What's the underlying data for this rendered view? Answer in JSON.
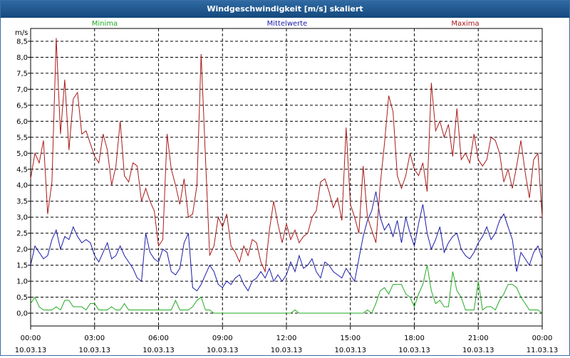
{
  "window": {
    "title": "Windgeschwindigkeit [m/s] skaliert"
  },
  "chart_data": {
    "type": "line",
    "title": "Windgeschwindigkeit [m/s] skaliert",
    "ylabel": "m/s",
    "ylim": [
      -0.4,
      8.9
    ],
    "xlim": [
      0,
      24
    ],
    "grid": true,
    "y_ticks": [
      "0,0",
      "0,5",
      "1,0",
      "1,5",
      "2,0",
      "2,5",
      "3,0",
      "3,5",
      "4,0",
      "4,5",
      "5,0",
      "5,5",
      "6,0",
      "6,5",
      "7,0",
      "7,5",
      "8,0",
      "8,5"
    ],
    "x_ticks": [
      {
        "time": "00:00",
        "date": "10.03.13"
      },
      {
        "time": "03:00",
        "date": "10.03.13"
      },
      {
        "time": "06:00",
        "date": "10.03.13"
      },
      {
        "time": "09:00",
        "date": "10.03.13"
      },
      {
        "time": "12:00",
        "date": "10.03.13"
      },
      {
        "time": "15:00",
        "date": "10.03.13"
      },
      {
        "time": "18:00",
        "date": "10.03.13"
      },
      {
        "time": "21:00",
        "date": "10.03.13"
      },
      {
        "time": "00:00",
        "date": "11.03.13"
      }
    ],
    "series": [
      {
        "name": "Minima",
        "color": "#22aa22",
        "x": [
          0,
          0.2,
          0.4,
          0.6,
          0.8,
          1.0,
          1.2,
          1.4,
          1.6,
          1.8,
          2.0,
          2.2,
          2.4,
          2.6,
          2.8,
          3.0,
          3.2,
          3.4,
          3.6,
          3.8,
          4.0,
          4.2,
          4.4,
          4.6,
          4.8,
          5.0,
          5.2,
          5.4,
          5.6,
          5.8,
          6.0,
          6.2,
          6.4,
          6.6,
          6.8,
          7.0,
          7.2,
          7.4,
          7.6,
          7.8,
          8.0,
          8.2,
          8.4,
          8.6,
          8.8,
          9.0,
          9.2,
          9.4,
          9.6,
          9.8,
          10.0,
          10.2,
          10.4,
          10.6,
          10.8,
          11.0,
          11.2,
          11.4,
          11.6,
          11.8,
          12.0,
          12.2,
          12.4,
          12.6,
          12.8,
          13.0,
          13.2,
          13.4,
          13.6,
          13.8,
          14.0,
          14.2,
          14.4,
          14.6,
          14.8,
          15.0,
          15.2,
          15.4,
          15.6,
          15.8,
          16.0,
          16.2,
          16.4,
          16.6,
          16.8,
          17.0,
          17.2,
          17.4,
          17.6,
          17.8,
          18.0,
          18.2,
          18.4,
          18.6,
          18.8,
          19.0,
          19.2,
          19.4,
          19.6,
          19.8,
          20.0,
          20.2,
          20.4,
          20.6,
          20.8,
          21.0,
          21.2,
          21.4,
          21.6,
          21.8,
          22.0,
          22.2,
          22.4,
          22.6,
          22.8,
          23.0,
          23.2,
          23.4,
          23.6,
          23.8,
          24.0
        ],
        "values": [
          0.3,
          0.5,
          0.2,
          0.1,
          0.1,
          0.1,
          0.2,
          0.1,
          0.4,
          0.4,
          0.2,
          0.2,
          0.2,
          0.1,
          0.3,
          0.3,
          0.1,
          0.1,
          0.1,
          0.2,
          0.1,
          0.1,
          0.3,
          0.1,
          0.1,
          0.1,
          0.1,
          0.1,
          0.1,
          0.1,
          0.1,
          0.1,
          0.1,
          0.1,
          0.4,
          0.1,
          0.1,
          0.1,
          0.2,
          0.4,
          0.5,
          0.1,
          0.1,
          0.0,
          0.0,
          0.0,
          0.0,
          0.0,
          0.0,
          0.0,
          0.0,
          0.0,
          0.0,
          0.0,
          0.0,
          0.0,
          0.0,
          0.0,
          0.0,
          0.0,
          0.0,
          0.0,
          0.1,
          0.0,
          0.0,
          0.0,
          0.0,
          0.0,
          0.0,
          0.0,
          0.0,
          0.0,
          0.0,
          0.0,
          0.0,
          0.0,
          0.0,
          0.0,
          0.0,
          0.1,
          0.0,
          0.3,
          0.7,
          0.8,
          0.6,
          0.9,
          0.9,
          0.9,
          0.6,
          0.5,
          0.2,
          0.6,
          0.9,
          1.5,
          0.7,
          0.3,
          0.4,
          0.2,
          0.2,
          1.3,
          0.7,
          0.5,
          0.1,
          0.1,
          0.1,
          1.0,
          0.1,
          0.2,
          0.2,
          0.1,
          0.4,
          0.6,
          0.9,
          0.9,
          0.8,
          0.5,
          0.3,
          0.1,
          0.1,
          0.1,
          0.0
        ]
      },
      {
        "name": "Mittelwerte",
        "color": "#1a1aaa",
        "x": [
          0,
          0.2,
          0.4,
          0.6,
          0.8,
          1.0,
          1.2,
          1.4,
          1.6,
          1.8,
          2.0,
          2.2,
          2.4,
          2.6,
          2.8,
          3.0,
          3.2,
          3.4,
          3.6,
          3.8,
          4.0,
          4.2,
          4.4,
          4.6,
          4.8,
          5.0,
          5.2,
          5.4,
          5.6,
          5.8,
          6.0,
          6.2,
          6.4,
          6.6,
          6.8,
          7.0,
          7.2,
          7.4,
          7.6,
          7.8,
          8.0,
          8.2,
          8.4,
          8.6,
          8.8,
          9.0,
          9.2,
          9.4,
          9.6,
          9.8,
          10.0,
          10.2,
          10.4,
          10.6,
          10.8,
          11.0,
          11.2,
          11.4,
          11.6,
          11.8,
          12.0,
          12.2,
          12.4,
          12.6,
          12.8,
          13.0,
          13.2,
          13.4,
          13.6,
          13.8,
          14.0,
          14.2,
          14.4,
          14.6,
          14.8,
          15.0,
          15.2,
          15.4,
          15.6,
          15.8,
          16.0,
          16.2,
          16.4,
          16.6,
          16.8,
          17.0,
          17.2,
          17.4,
          17.6,
          17.8,
          18.0,
          18.2,
          18.4,
          18.6,
          18.8,
          19.0,
          19.2,
          19.4,
          19.6,
          19.8,
          20.0,
          20.2,
          20.4,
          20.6,
          20.8,
          21.0,
          21.2,
          21.4,
          21.6,
          21.8,
          22.0,
          22.2,
          22.4,
          22.6,
          22.8,
          23.0,
          23.2,
          23.4,
          23.6,
          23.8,
          24.0
        ],
        "values": [
          1.5,
          2.1,
          1.9,
          1.7,
          1.8,
          2.3,
          2.6,
          2.0,
          2.4,
          2.3,
          2.7,
          2.4,
          2.2,
          2.3,
          2.2,
          1.8,
          1.6,
          1.9,
          2.2,
          1.7,
          1.8,
          2.1,
          1.8,
          1.6,
          1.4,
          1.1,
          1.0,
          2.5,
          1.9,
          1.7,
          1.6,
          2.0,
          1.9,
          1.3,
          1.2,
          1.4,
          2.2,
          2.5,
          0.8,
          0.7,
          0.9,
          1.2,
          1.5,
          1.3,
          0.9,
          0.8,
          1.0,
          0.9,
          1.1,
          1.2,
          0.9,
          0.7,
          1.0,
          1.1,
          1.3,
          1.1,
          1.4,
          1.0,
          1.2,
          1.0,
          1.2,
          1.6,
          1.3,
          1.8,
          1.4,
          1.5,
          1.7,
          1.3,
          1.1,
          1.6,
          1.5,
          1.3,
          1.2,
          1.1,
          1.4,
          1.2,
          1.0,
          1.7,
          2.4,
          2.9,
          3.2,
          3.8,
          3.0,
          2.6,
          2.8,
          2.4,
          2.9,
          2.2,
          3.0,
          2.5,
          2.1,
          2.8,
          3.4,
          2.5,
          2.0,
          2.3,
          2.7,
          1.9,
          2.2,
          2.4,
          2.5,
          2.0,
          1.8,
          1.7,
          1.9,
          2.2,
          2.4,
          2.7,
          2.3,
          2.5,
          2.9,
          3.1,
          2.7,
          2.3,
          1.3,
          1.9,
          1.7,
          1.5,
          1.9,
          2.1,
          1.7
        ]
      },
      {
        "name": "Maxima",
        "color": "#aa1a1a",
        "x": [
          0,
          0.2,
          0.4,
          0.6,
          0.8,
          1.0,
          1.2,
          1.4,
          1.6,
          1.8,
          2.0,
          2.2,
          2.4,
          2.6,
          2.8,
          3.0,
          3.2,
          3.4,
          3.6,
          3.8,
          4.0,
          4.2,
          4.4,
          4.6,
          4.8,
          5.0,
          5.2,
          5.4,
          5.6,
          5.8,
          6.0,
          6.2,
          6.4,
          6.6,
          6.8,
          7.0,
          7.2,
          7.4,
          7.6,
          7.8,
          8.0,
          8.2,
          8.4,
          8.6,
          8.8,
          9.0,
          9.2,
          9.4,
          9.6,
          9.8,
          10.0,
          10.2,
          10.4,
          10.6,
          10.8,
          11.0,
          11.2,
          11.4,
          11.6,
          11.8,
          12.0,
          12.2,
          12.4,
          12.6,
          12.8,
          13.0,
          13.2,
          13.4,
          13.6,
          13.8,
          14.0,
          14.2,
          14.4,
          14.6,
          14.8,
          15.0,
          15.2,
          15.4,
          15.6,
          15.8,
          16.0,
          16.2,
          16.4,
          16.6,
          16.8,
          17.0,
          17.2,
          17.4,
          17.6,
          17.8,
          18.0,
          18.2,
          18.4,
          18.6,
          18.8,
          19.0,
          19.2,
          19.4,
          19.6,
          19.8,
          20.0,
          20.2,
          20.4,
          20.6,
          20.8,
          21.0,
          21.2,
          21.4,
          21.6,
          21.8,
          22.0,
          22.2,
          22.4,
          22.6,
          22.8,
          23.0,
          23.2,
          23.4,
          23.6,
          23.8,
          24.0
        ],
        "values": [
          4.2,
          5.0,
          4.7,
          5.4,
          3.1,
          4.1,
          8.6,
          5.6,
          7.3,
          5.1,
          6.7,
          6.9,
          5.6,
          5.7,
          5.3,
          4.9,
          4.7,
          5.6,
          5.1,
          4.0,
          4.6,
          6.0,
          4.3,
          4.1,
          4.7,
          4.6,
          3.5,
          3.9,
          3.5,
          3.2,
          2.1,
          2.3,
          5.6,
          4.5,
          4.0,
          3.4,
          4.2,
          3.0,
          3.1,
          4.0,
          8.1,
          4.9,
          1.8,
          2.1,
          3.0,
          2.7,
          3.1,
          2.1,
          1.9,
          1.6,
          2.1,
          1.8,
          2.3,
          2.2,
          1.6,
          1.3,
          2.6,
          3.5,
          2.8,
          2.2,
          2.8,
          2.3,
          2.6,
          2.2,
          2.4,
          2.5,
          3.0,
          3.2,
          4.1,
          4.2,
          3.8,
          3.3,
          3.6,
          2.9,
          5.8,
          3.4,
          3.0,
          2.5,
          4.6,
          3.0,
          2.6,
          2.2,
          4.0,
          5.3,
          6.8,
          6.3,
          4.3,
          3.9,
          4.3,
          5.0,
          4.5,
          4.3,
          4.7,
          3.8,
          7.2,
          5.7,
          6.0,
          5.5,
          5.9,
          4.9,
          6.4,
          4.8,
          5.0,
          4.7,
          5.6,
          4.8,
          4.6,
          4.8,
          5.5,
          5.4,
          5.0,
          4.1,
          4.5,
          3.9,
          4.6,
          5.4,
          4.4,
          3.6,
          4.8,
          5.0,
          3.0
        ]
      }
    ]
  }
}
